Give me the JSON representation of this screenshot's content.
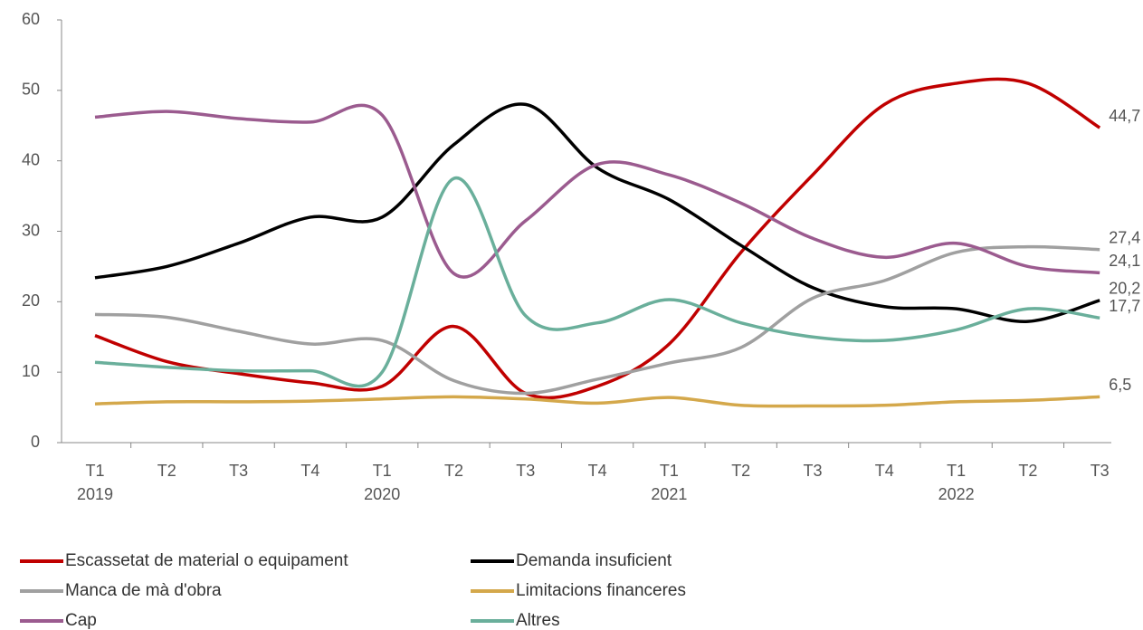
{
  "chart_data": {
    "type": "line",
    "categories": [
      "T1 2019",
      "T2",
      "T3",
      "T4",
      "T1 2020",
      "T2",
      "T3",
      "T4",
      "T1 2021",
      "T2",
      "T3",
      "T4",
      "T1 2022",
      "T2",
      "T3"
    ],
    "ylim": [
      0,
      60
    ],
    "yticks": [
      0,
      10,
      20,
      30,
      40,
      50,
      60
    ],
    "grid": false,
    "legend": "bottom",
    "series": [
      {
        "name": "Escassetat de material o equipament",
        "color": "#c00000",
        "values": [
          15.2,
          11.5,
          9.8,
          8.5,
          8,
          16.5,
          7,
          8,
          14,
          27,
          38,
          48,
          51,
          51,
          44.7
        ],
        "value_labels": [
          null,
          null,
          null,
          null,
          null,
          null,
          null,
          null,
          null,
          null,
          null,
          null,
          null,
          null,
          "44,7"
        ]
      },
      {
        "name": "Demanda insuficient",
        "color": "#000000",
        "values": [
          23.4,
          25,
          28.3,
          32,
          32,
          42.3,
          48,
          39,
          34.5,
          28,
          22,
          19.3,
          19,
          17.2,
          20.2
        ],
        "value_labels": [
          null,
          null,
          null,
          null,
          null,
          null,
          null,
          null,
          null,
          null,
          null,
          null,
          null,
          null,
          "20,2"
        ]
      },
      {
        "name": "Manca de mà d'obra",
        "color": "#a0a0a0",
        "values": [
          18.2,
          17.8,
          15.8,
          14,
          14.5,
          8.8,
          7,
          9,
          11.3,
          13.5,
          20.5,
          23,
          27,
          27.8,
          27.4
        ],
        "value_labels": [
          null,
          null,
          null,
          null,
          null,
          null,
          null,
          null,
          null,
          null,
          null,
          null,
          null,
          null,
          "27,4"
        ]
      },
      {
        "name": "Limitacions financeres",
        "color": "#d4a84b",
        "values": [
          5.5,
          5.8,
          5.8,
          5.9,
          6.2,
          6.5,
          6.2,
          5.6,
          6.4,
          5.3,
          5.2,
          5.3,
          5.8,
          6,
          6.5
        ],
        "value_labels": [
          null,
          null,
          null,
          null,
          null,
          null,
          null,
          null,
          null,
          null,
          null,
          null,
          null,
          null,
          "6,5"
        ]
      },
      {
        "name": "Cap",
        "color": "#9b5b8f",
        "values": [
          46.2,
          47,
          46,
          45.5,
          46.5,
          24,
          31.5,
          39.5,
          38,
          34,
          29,
          26.3,
          28.3,
          25,
          24.1
        ],
        "value_labels": [
          null,
          null,
          null,
          null,
          null,
          null,
          null,
          null,
          null,
          null,
          null,
          null,
          null,
          null,
          "24,1"
        ]
      },
      {
        "name": "Altres",
        "color": "#6aaf9b",
        "values": [
          11.4,
          10.7,
          10.2,
          10.2,
          10,
          37.5,
          18,
          17,
          20.3,
          17,
          15,
          14.5,
          16,
          19,
          17.7
        ],
        "value_labels": [
          null,
          null,
          null,
          null,
          null,
          null,
          null,
          null,
          null,
          null,
          null,
          null,
          null,
          null,
          "17,7"
        ]
      }
    ]
  }
}
